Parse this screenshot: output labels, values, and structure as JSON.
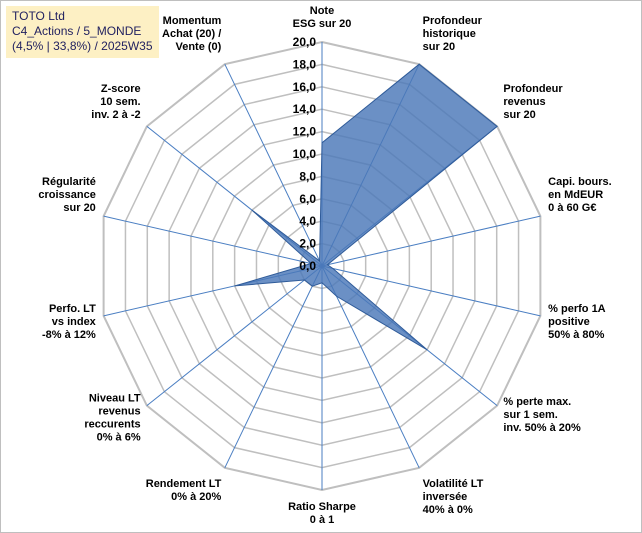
{
  "title_box": {
    "line1": "TOTO Ltd",
    "line2": "C4_Actions / 5_MONDE",
    "line3": "(4,5% | 33,8%) / 2025W35"
  },
  "chart_data": {
    "type": "radar",
    "axis_min": 0,
    "axis_max": 20,
    "tick_step": 2,
    "ticks": [
      "0,0",
      "2,0",
      "4,0",
      "6,0",
      "8,0",
      "10,0",
      "12,0",
      "14,0",
      "16,0",
      "18,0",
      "20,0"
    ],
    "grid": true,
    "colors": {
      "fill": "#4a78b8",
      "stroke": "#2f5b99",
      "grid": "#bfbfbf",
      "spoke": "#4a7ec2"
    },
    "axes": [
      {
        "label": [
          "Note",
          "ESG sur 20"
        ],
        "value": 11
      },
      {
        "label": [
          "Profondeur",
          "historique",
          "sur 20"
        ],
        "value": 20
      },
      {
        "label": [
          "Profondeur",
          "revenus",
          "sur 20"
        ],
        "value": 20
      },
      {
        "label": [
          "Capi. bours.",
          "en MdEUR",
          "0 à 60 G€"
        ],
        "value": 0.5
      },
      {
        "label": [
          "% perfo 1A",
          "positive",
          "50% à 80%"
        ],
        "value": 1
      },
      {
        "label": [
          "% perte max.",
          "sur 1 sem.",
          "inv. 50% à 20%"
        ],
        "value": 12
      },
      {
        "label": [
          "Volatilité LT",
          "inversée",
          "40% à 0%"
        ],
        "value": 3
      },
      {
        "label": [
          "Ratio Sharpe",
          "0 à 1"
        ],
        "value": 1.5
      },
      {
        "label": [
          "Rendement LT",
          "0% à 20%"
        ],
        "value": 2
      },
      {
        "label": [
          "Niveau LT",
          "revenus",
          "reccurents",
          "0% à 6%"
        ],
        "value": 2
      },
      {
        "label": [
          "Perfo. LT",
          "vs index",
          "-8% à 12%"
        ],
        "value": 8
      },
      {
        "label": [
          "Régularité",
          "croissance",
          "sur 20"
        ],
        "value": 1
      },
      {
        "label": [
          "Z-score",
          "10 sem.",
          "inv. 2 à -2"
        ],
        "value": 8
      },
      {
        "label": [
          "Momentum",
          "Achat (20) /",
          "Vente (0)"
        ],
        "value": 0.5
      }
    ]
  }
}
